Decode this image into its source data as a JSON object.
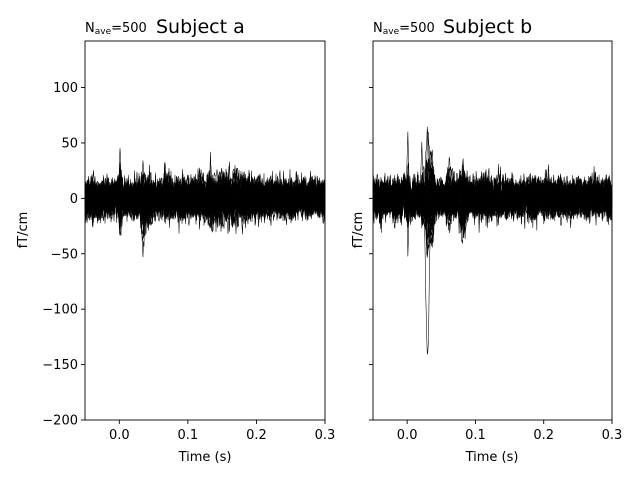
{
  "chart_data": [
    {
      "type": "line",
      "title": "Subject a",
      "nave_label": "N",
      "nave_sub": "ave",
      "nave_value": "=500",
      "xlabel": "Time (s)",
      "ylabel": "fT/cm",
      "xlim": [
        -0.05,
        0.3
      ],
      "ylim": [
        -200,
        142
      ],
      "xticks": [
        0.0,
        0.1,
        0.2,
        0.3
      ],
      "xtick_labels": [
        "0.0",
        "0.1",
        "0.2",
        "0.3"
      ],
      "yticks": [
        100,
        50,
        0,
        -50,
        -100,
        -150,
        -200
      ],
      "ytick_labels": [
        "100",
        "50",
        "0",
        "−50",
        "−100",
        "−150",
        "−200"
      ],
      "show_ytick_labels": true,
      "grid": false,
      "n_channels": 40,
      "events": [
        {
          "t": 0.001,
          "w": 0.0012,
          "amp": [
            45,
            -55
          ]
        },
        {
          "t": 0.003,
          "w": 0.0009,
          "amp": [
            5,
            -75
          ]
        },
        {
          "t": 0.026,
          "w": 0.004,
          "amp": [
            12,
            -18
          ]
        },
        {
          "t": 0.035,
          "w": 0.004,
          "amp": [
            35,
            -45
          ]
        },
        {
          "t": 0.045,
          "w": 0.005,
          "amp": [
            15,
            -20
          ]
        },
        {
          "t": 0.068,
          "w": 0.006,
          "amp": [
            18,
            -8
          ]
        },
        {
          "t": 0.15,
          "w": 0.05,
          "amp": [
            26,
            -20
          ]
        }
      ],
      "noise": 9,
      "envelope": {
        "max": 60,
        "min": -90
      }
    },
    {
      "type": "line",
      "title": "Subject b",
      "nave_label": "N",
      "nave_sub": "ave",
      "nave_value": "=500",
      "xlabel": "Time (s)",
      "ylabel": "fT/cm",
      "xlim": [
        -0.05,
        0.3
      ],
      "ylim": [
        -200,
        142
      ],
      "xticks": [
        0.0,
        0.1,
        0.2,
        0.3
      ],
      "xtick_labels": [
        "0.0",
        "0.1",
        "0.2",
        "0.3"
      ],
      "yticks": [
        100,
        50,
        0,
        -50,
        -100,
        -150,
        -200
      ],
      "ytick_labels": [],
      "show_ytick_labels": false,
      "grid": false,
      "n_channels": 40,
      "events": [
        {
          "t": 0.001,
          "w": 0.0012,
          "amp": [
            50,
            -55
          ]
        },
        {
          "t": 0.022,
          "w": 0.003,
          "amp": [
            40,
            -30
          ]
        },
        {
          "t": 0.03,
          "w": 0.0035,
          "amp": [
            110,
            -160
          ]
        },
        {
          "t": 0.036,
          "w": 0.004,
          "amp": [
            50,
            -45
          ]
        },
        {
          "t": 0.062,
          "w": 0.005,
          "amp": [
            35,
            -25
          ]
        },
        {
          "t": 0.082,
          "w": 0.006,
          "amp": [
            25,
            -30
          ]
        },
        {
          "t": 0.12,
          "w": 0.03,
          "amp": [
            12,
            -12
          ]
        }
      ],
      "noise": 9,
      "envelope": {
        "max": 128,
        "min": -183
      }
    }
  ]
}
